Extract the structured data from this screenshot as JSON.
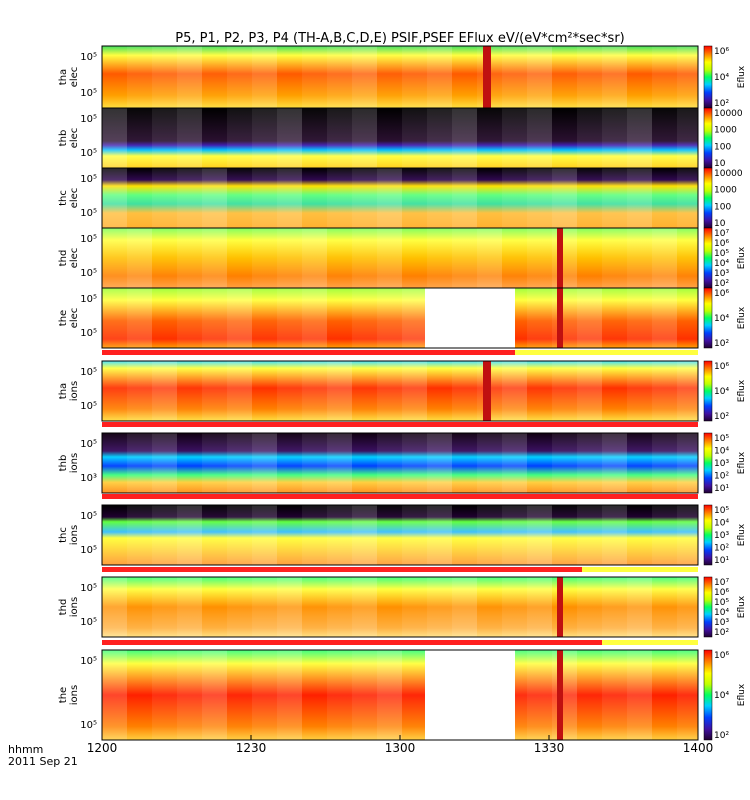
{
  "title": "P5, P1, P2, P3, P4 (TH-A,B,C,D,E) PSIF,PSEF EFlux eV/(eV*cm²*sec*sr)",
  "footer": {
    "time_label": "hhmm",
    "date_label": "2011 Sep 21"
  },
  "x_ticks": [
    "1200",
    "1230",
    "1300",
    "1330",
    "1400"
  ],
  "chart_data": [
    {
      "type": "heatmap",
      "panel": "tha elec",
      "ylabel": [
        "tha",
        "elec"
      ],
      "yticks": [
        "10⁵",
        "10⁵"
      ],
      "zlabel": "Eflux",
      "zticks": [
        "10⁶",
        "10⁴",
        "10²"
      ],
      "time_range": [
        "1200",
        "1400"
      ]
    },
    {
      "type": "heatmap",
      "panel": "thb elec",
      "ylabel": [
        "thb",
        "elec"
      ],
      "yticks": [
        "10⁵",
        "10⁵"
      ],
      "zlabel": "",
      "zticks": [
        "10000",
        "1000",
        "100",
        "10"
      ],
      "time_range": [
        "1200",
        "1400"
      ]
    },
    {
      "type": "heatmap",
      "panel": "thc elec",
      "ylabel": [
        "thc",
        "elec"
      ],
      "yticks": [
        "10⁵",
        "10⁵"
      ],
      "zlabel": "",
      "zticks": [
        "10000",
        "1000",
        "100",
        "10"
      ],
      "time_range": [
        "1200",
        "1400"
      ]
    },
    {
      "type": "heatmap",
      "panel": "thd elec",
      "ylabel": [
        "thd",
        "elec"
      ],
      "yticks": [
        "10⁵",
        "10⁵"
      ],
      "zlabel": "Eflux",
      "zticks": [
        "10⁷",
        "10⁶",
        "10⁵",
        "10⁴",
        "10³",
        "10²"
      ],
      "time_range": [
        "1200",
        "1400"
      ]
    },
    {
      "type": "heatmap",
      "panel": "the elec",
      "ylabel": [
        "the",
        "elec"
      ],
      "yticks": [
        "10⁵",
        "10⁵"
      ],
      "zlabel": "Eflux",
      "zticks": [
        "10⁶",
        "10⁴",
        "10²"
      ],
      "time_range": [
        "1200",
        "1400"
      ]
    },
    {
      "type": "heatmap",
      "panel": "tha ions",
      "ylabel": [
        "tha",
        "ions"
      ],
      "yticks": [
        "10⁵",
        "10⁵"
      ],
      "zlabel": "Eflux",
      "zticks": [
        "10⁶",
        "10⁴",
        "10²"
      ],
      "time_range": [
        "1200",
        "1400"
      ]
    },
    {
      "type": "heatmap",
      "panel": "thb ions",
      "ylabel": [
        "thb",
        "ions"
      ],
      "yticks": [
        "10⁵",
        "10³"
      ],
      "zlabel": "Eflux",
      "zticks": [
        "10⁵",
        "10⁴",
        "10³",
        "10²",
        "10¹"
      ],
      "time_range": [
        "1200",
        "1400"
      ]
    },
    {
      "type": "heatmap",
      "panel": "thc ions",
      "ylabel": [
        "thc",
        "ions"
      ],
      "yticks": [
        "10⁵",
        "10⁵"
      ],
      "zlabel": "Eflux",
      "zticks": [
        "10⁵",
        "10⁴",
        "10³",
        "10²",
        "10¹"
      ],
      "time_range": [
        "1200",
        "1400"
      ]
    },
    {
      "type": "heatmap",
      "panel": "thd ions",
      "ylabel": [
        "thd",
        "ions"
      ],
      "yticks": [
        "10⁵",
        "10⁵"
      ],
      "zlabel": "Eflux",
      "zticks": [
        "10⁷",
        "10⁶",
        "10⁵",
        "10⁴",
        "10³",
        "10²"
      ],
      "time_range": [
        "1200",
        "1400"
      ]
    },
    {
      "type": "heatmap",
      "panel": "the ions",
      "ylabel": [
        "the",
        "ions"
      ],
      "yticks": [
        "10⁵",
        "10⁵"
      ],
      "zlabel": "Eflux",
      "zticks": [
        "10⁶",
        "10⁴",
        "10²"
      ],
      "time_range": [
        "1200",
        "1400"
      ]
    }
  ]
}
